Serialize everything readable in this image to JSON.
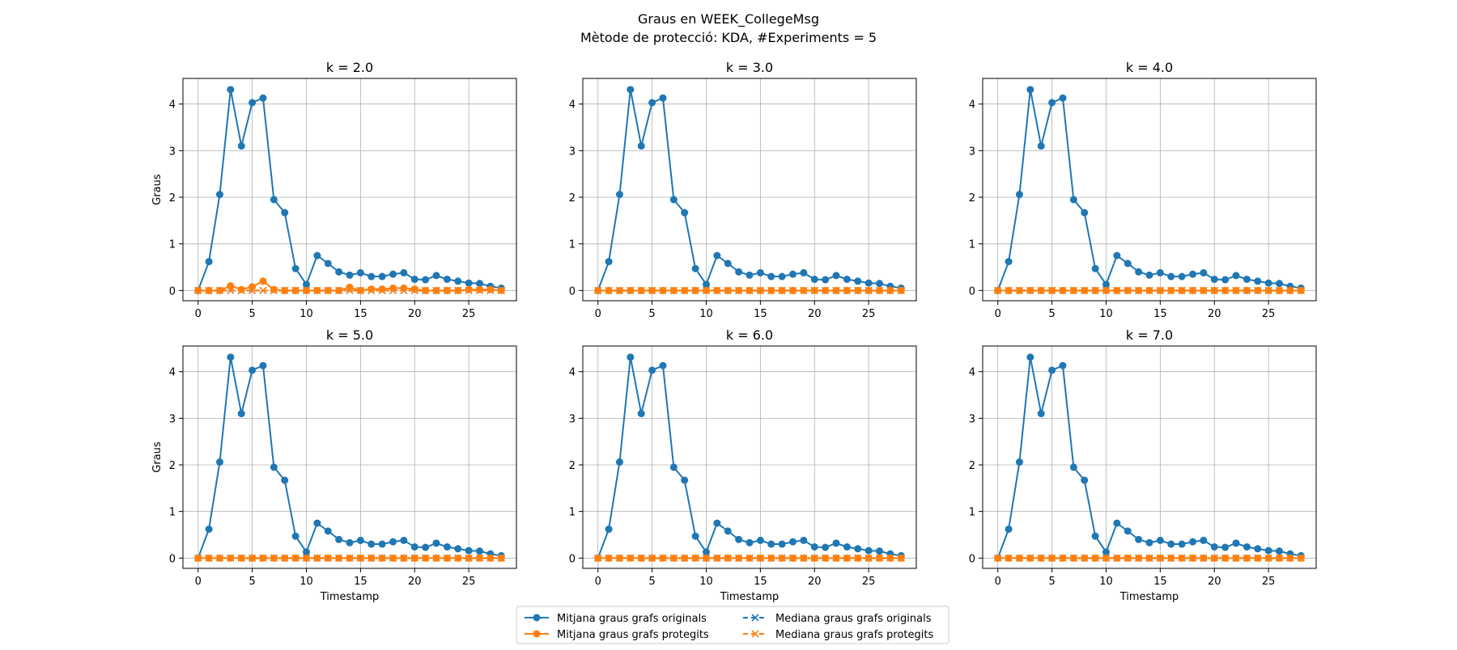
{
  "figure": {
    "title_line1": "Graus en WEEK_CollegeMsg",
    "title_line2": "Mètode de protecció: KDA, #Experiments = 5"
  },
  "colors": {
    "original": "#1f77b4",
    "protected": "#ff7f0e",
    "grid": "#b0b0b0"
  },
  "legend": {
    "placement": "bottom-center",
    "items": [
      {
        "label": "Mitjana graus grafs originals",
        "series": "orig_mean",
        "style": "solid-circle"
      },
      {
        "label": "Mitjana graus grafs protegits",
        "series": "prot_mean",
        "style": "solid-circle"
      },
      {
        "label": "Mediana graus grafs originals",
        "series": "orig_median",
        "style": "dashed-x"
      },
      {
        "label": "Mediana graus grafs protegits",
        "series": "prot_median",
        "style": "dashed-x"
      }
    ]
  },
  "chart_data": [
    {
      "type": "line",
      "title": "k = 2.0",
      "xlabel": "",
      "ylabel": "Graus",
      "xlim": [
        -1.4,
        29.4
      ],
      "ylim": [
        -0.22,
        4.55
      ],
      "xticks": [
        0,
        5,
        10,
        15,
        20,
        25
      ],
      "yticks": [
        0,
        1,
        2,
        3,
        4
      ],
      "grid": true,
      "x": [
        0,
        1,
        2,
        3,
        4,
        5,
        6,
        7,
        8,
        9,
        10,
        11,
        12,
        13,
        14,
        15,
        16,
        17,
        18,
        19,
        20,
        21,
        22,
        23,
        24,
        25,
        26,
        27,
        28
      ],
      "series": [
        {
          "name": "Mitjana graus grafs originals",
          "values": [
            0,
            0.62,
            2.06,
            4.31,
            3.1,
            4.03,
            4.13,
            1.95,
            1.67,
            0.47,
            0.13,
            0.75,
            0.58,
            0.4,
            0.33,
            0.38,
            0.3,
            0.3,
            0.35,
            0.38,
            0.24,
            0.23,
            0.32,
            0.24,
            0.2,
            0.16,
            0.15,
            0.09,
            0.05
          ]
        },
        {
          "name": "Mediana graus grafs originals",
          "values": [
            0,
            0,
            0,
            0,
            0,
            0,
            0,
            0,
            0,
            0,
            0,
            0,
            0,
            0,
            0,
            0,
            0,
            0,
            0,
            0,
            0,
            0,
            0,
            0,
            0,
            0,
            0,
            0,
            0
          ]
        },
        {
          "name": "Mitjana graus grafs protegits",
          "values": [
            0,
            0,
            0,
            0.1,
            0.02,
            0.08,
            0.2,
            0.02,
            0,
            0,
            0,
            0,
            0,
            0,
            0.07,
            0,
            0.03,
            0.03,
            0.05,
            0.05,
            0.03,
            0,
            0,
            0,
            0,
            0.02,
            0.02,
            0.02,
            0
          ]
        },
        {
          "name": "Mediana graus grafs protegits",
          "values": [
            0,
            0,
            0,
            0,
            0,
            0,
            0,
            0,
            0,
            0,
            0,
            0,
            0,
            0,
            0,
            0,
            0,
            0,
            0,
            0,
            0,
            0,
            0,
            0,
            0,
            0,
            0,
            0,
            0
          ]
        }
      ]
    },
    {
      "type": "line",
      "title": "k = 3.0",
      "xlabel": "",
      "ylabel": "",
      "xlim": [
        -1.4,
        29.4
      ],
      "ylim": [
        -0.22,
        4.55
      ],
      "xticks": [
        0,
        5,
        10,
        15,
        20,
        25
      ],
      "yticks": [
        0,
        1,
        2,
        3,
        4
      ],
      "grid": true,
      "x": [
        0,
        1,
        2,
        3,
        4,
        5,
        6,
        7,
        8,
        9,
        10,
        11,
        12,
        13,
        14,
        15,
        16,
        17,
        18,
        19,
        20,
        21,
        22,
        23,
        24,
        25,
        26,
        27,
        28
      ],
      "series": [
        {
          "name": "Mitjana graus grafs originals",
          "values": [
            0,
            0.62,
            2.06,
            4.31,
            3.1,
            4.03,
            4.13,
            1.95,
            1.67,
            0.47,
            0.13,
            0.75,
            0.58,
            0.4,
            0.33,
            0.38,
            0.3,
            0.3,
            0.35,
            0.38,
            0.24,
            0.23,
            0.32,
            0.24,
            0.2,
            0.16,
            0.15,
            0.09,
            0.05
          ]
        },
        {
          "name": "Mediana graus grafs originals",
          "values": [
            0,
            0,
            0,
            0,
            0,
            0,
            0,
            0,
            0,
            0,
            0,
            0,
            0,
            0,
            0,
            0,
            0,
            0,
            0,
            0,
            0,
            0,
            0,
            0,
            0,
            0,
            0,
            0,
            0
          ]
        },
        {
          "name": "Mitjana graus grafs protegits",
          "values": [
            0,
            0,
            0,
            0,
            0,
            0,
            0,
            0,
            0,
            0,
            0,
            0,
            0,
            0,
            0,
            0,
            0,
            0,
            0,
            0,
            0,
            0,
            0,
            0,
            0,
            0,
            0,
            0,
            0
          ]
        },
        {
          "name": "Mediana graus grafs protegits",
          "values": [
            0,
            0,
            0,
            0,
            0,
            0,
            0,
            0,
            0,
            0,
            0,
            0,
            0,
            0,
            0,
            0,
            0,
            0,
            0,
            0,
            0,
            0,
            0,
            0,
            0,
            0,
            0,
            0,
            0
          ]
        }
      ]
    },
    {
      "type": "line",
      "title": "k = 4.0",
      "xlabel": "",
      "ylabel": "",
      "xlim": [
        -1.4,
        29.4
      ],
      "ylim": [
        -0.22,
        4.55
      ],
      "xticks": [
        0,
        5,
        10,
        15,
        20,
        25
      ],
      "yticks": [
        0,
        1,
        2,
        3,
        4
      ],
      "grid": true,
      "x": [
        0,
        1,
        2,
        3,
        4,
        5,
        6,
        7,
        8,
        9,
        10,
        11,
        12,
        13,
        14,
        15,
        16,
        17,
        18,
        19,
        20,
        21,
        22,
        23,
        24,
        25,
        26,
        27,
        28
      ],
      "series": [
        {
          "name": "Mitjana graus grafs originals",
          "values": [
            0,
            0.62,
            2.06,
            4.31,
            3.1,
            4.03,
            4.13,
            1.95,
            1.67,
            0.47,
            0.13,
            0.75,
            0.58,
            0.4,
            0.33,
            0.38,
            0.3,
            0.3,
            0.35,
            0.38,
            0.24,
            0.23,
            0.32,
            0.24,
            0.2,
            0.16,
            0.15,
            0.09,
            0.05
          ]
        },
        {
          "name": "Mediana graus grafs originals",
          "values": [
            0,
            0,
            0,
            0,
            0,
            0,
            0,
            0,
            0,
            0,
            0,
            0,
            0,
            0,
            0,
            0,
            0,
            0,
            0,
            0,
            0,
            0,
            0,
            0,
            0,
            0,
            0,
            0,
            0
          ]
        },
        {
          "name": "Mitjana graus grafs protegits",
          "values": [
            0,
            0,
            0,
            0,
            0,
            0,
            0,
            0,
            0,
            0,
            0,
            0,
            0,
            0,
            0,
            0,
            0,
            0,
            0,
            0,
            0,
            0,
            0,
            0,
            0,
            0,
            0,
            0,
            0
          ]
        },
        {
          "name": "Mediana graus grafs protegits",
          "values": [
            0,
            0,
            0,
            0,
            0,
            0,
            0,
            0,
            0,
            0,
            0,
            0,
            0,
            0,
            0,
            0,
            0,
            0,
            0,
            0,
            0,
            0,
            0,
            0,
            0,
            0,
            0,
            0,
            0
          ]
        }
      ]
    },
    {
      "type": "line",
      "title": "k = 5.0",
      "xlabel": "Timestamp",
      "ylabel": "Graus",
      "xlim": [
        -1.4,
        29.4
      ],
      "ylim": [
        -0.22,
        4.55
      ],
      "xticks": [
        0,
        5,
        10,
        15,
        20,
        25
      ],
      "yticks": [
        0,
        1,
        2,
        3,
        4
      ],
      "grid": true,
      "x": [
        0,
        1,
        2,
        3,
        4,
        5,
        6,
        7,
        8,
        9,
        10,
        11,
        12,
        13,
        14,
        15,
        16,
        17,
        18,
        19,
        20,
        21,
        22,
        23,
        24,
        25,
        26,
        27,
        28
      ],
      "series": [
        {
          "name": "Mitjana graus grafs originals",
          "values": [
            0,
            0.62,
            2.06,
            4.31,
            3.1,
            4.03,
            4.13,
            1.95,
            1.67,
            0.47,
            0.13,
            0.75,
            0.58,
            0.4,
            0.33,
            0.38,
            0.3,
            0.3,
            0.35,
            0.38,
            0.24,
            0.23,
            0.32,
            0.24,
            0.2,
            0.16,
            0.15,
            0.09,
            0.05
          ]
        },
        {
          "name": "Mediana graus grafs originals",
          "values": [
            0,
            0,
            0,
            0,
            0,
            0,
            0,
            0,
            0,
            0,
            0,
            0,
            0,
            0,
            0,
            0,
            0,
            0,
            0,
            0,
            0,
            0,
            0,
            0,
            0,
            0,
            0,
            0,
            0
          ]
        },
        {
          "name": "Mitjana graus grafs protegits",
          "values": [
            0,
            0,
            0,
            0,
            0,
            0,
            0,
            0,
            0,
            0,
            0,
            0,
            0,
            0,
            0,
            0,
            0,
            0,
            0,
            0,
            0,
            0,
            0,
            0,
            0,
            0,
            0,
            0,
            0
          ]
        },
        {
          "name": "Mediana graus grafs protegits",
          "values": [
            0,
            0,
            0,
            0,
            0,
            0,
            0,
            0,
            0,
            0,
            0,
            0,
            0,
            0,
            0,
            0,
            0,
            0,
            0,
            0,
            0,
            0,
            0,
            0,
            0,
            0,
            0,
            0,
            0
          ]
        }
      ]
    },
    {
      "type": "line",
      "title": "k = 6.0",
      "xlabel": "Timestamp",
      "ylabel": "",
      "xlim": [
        -1.4,
        29.4
      ],
      "ylim": [
        -0.22,
        4.55
      ],
      "xticks": [
        0,
        5,
        10,
        15,
        20,
        25
      ],
      "yticks": [
        0,
        1,
        2,
        3,
        4
      ],
      "grid": true,
      "x": [
        0,
        1,
        2,
        3,
        4,
        5,
        6,
        7,
        8,
        9,
        10,
        11,
        12,
        13,
        14,
        15,
        16,
        17,
        18,
        19,
        20,
        21,
        22,
        23,
        24,
        25,
        26,
        27,
        28
      ],
      "series": [
        {
          "name": "Mitjana graus grafs originals",
          "values": [
            0,
            0.62,
            2.06,
            4.31,
            3.1,
            4.03,
            4.13,
            1.95,
            1.67,
            0.47,
            0.13,
            0.75,
            0.58,
            0.4,
            0.33,
            0.38,
            0.3,
            0.3,
            0.35,
            0.38,
            0.24,
            0.23,
            0.32,
            0.24,
            0.2,
            0.16,
            0.15,
            0.09,
            0.05
          ]
        },
        {
          "name": "Mediana graus grafs originals",
          "values": [
            0,
            0,
            0,
            0,
            0,
            0,
            0,
            0,
            0,
            0,
            0,
            0,
            0,
            0,
            0,
            0,
            0,
            0,
            0,
            0,
            0,
            0,
            0,
            0,
            0,
            0,
            0,
            0,
            0
          ]
        },
        {
          "name": "Mitjana graus grafs protegits",
          "values": [
            0,
            0,
            0,
            0,
            0,
            0,
            0,
            0,
            0,
            0,
            0,
            0,
            0,
            0,
            0,
            0,
            0,
            0,
            0,
            0,
            0,
            0,
            0,
            0,
            0,
            0,
            0,
            0,
            0
          ]
        },
        {
          "name": "Mediana graus grafs protegits",
          "values": [
            0,
            0,
            0,
            0,
            0,
            0,
            0,
            0,
            0,
            0,
            0,
            0,
            0,
            0,
            0,
            0,
            0,
            0,
            0,
            0,
            0,
            0,
            0,
            0,
            0,
            0,
            0,
            0,
            0
          ]
        }
      ]
    },
    {
      "type": "line",
      "title": "k = 7.0",
      "xlabel": "Timestamp",
      "ylabel": "",
      "xlim": [
        -1.4,
        29.4
      ],
      "ylim": [
        -0.22,
        4.55
      ],
      "xticks": [
        0,
        5,
        10,
        15,
        20,
        25
      ],
      "yticks": [
        0,
        1,
        2,
        3,
        4
      ],
      "grid": true,
      "x": [
        0,
        1,
        2,
        3,
        4,
        5,
        6,
        7,
        8,
        9,
        10,
        11,
        12,
        13,
        14,
        15,
        16,
        17,
        18,
        19,
        20,
        21,
        22,
        23,
        24,
        25,
        26,
        27,
        28
      ],
      "series": [
        {
          "name": "Mitjana graus grafs originals",
          "values": [
            0,
            0.62,
            2.06,
            4.31,
            3.1,
            4.03,
            4.13,
            1.95,
            1.67,
            0.47,
            0.13,
            0.75,
            0.58,
            0.4,
            0.33,
            0.38,
            0.3,
            0.3,
            0.35,
            0.38,
            0.24,
            0.23,
            0.32,
            0.24,
            0.2,
            0.16,
            0.15,
            0.09,
            0.05
          ]
        },
        {
          "name": "Mediana graus grafs originals",
          "values": [
            0,
            0,
            0,
            0,
            0,
            0,
            0,
            0,
            0,
            0,
            0,
            0,
            0,
            0,
            0,
            0,
            0,
            0,
            0,
            0,
            0,
            0,
            0,
            0,
            0,
            0,
            0,
            0,
            0
          ]
        },
        {
          "name": "Mitjana graus grafs protegits",
          "values": [
            0,
            0,
            0,
            0,
            0,
            0,
            0,
            0,
            0,
            0,
            0,
            0,
            0,
            0,
            0,
            0,
            0,
            0,
            0,
            0,
            0,
            0,
            0,
            0,
            0,
            0,
            0,
            0,
            0
          ]
        },
        {
          "name": "Mediana graus grafs protegits",
          "values": [
            0,
            0,
            0,
            0,
            0,
            0,
            0,
            0,
            0,
            0,
            0,
            0,
            0,
            0,
            0,
            0,
            0,
            0,
            0,
            0,
            0,
            0,
            0,
            0,
            0,
            0,
            0,
            0,
            0
          ]
        }
      ]
    }
  ]
}
